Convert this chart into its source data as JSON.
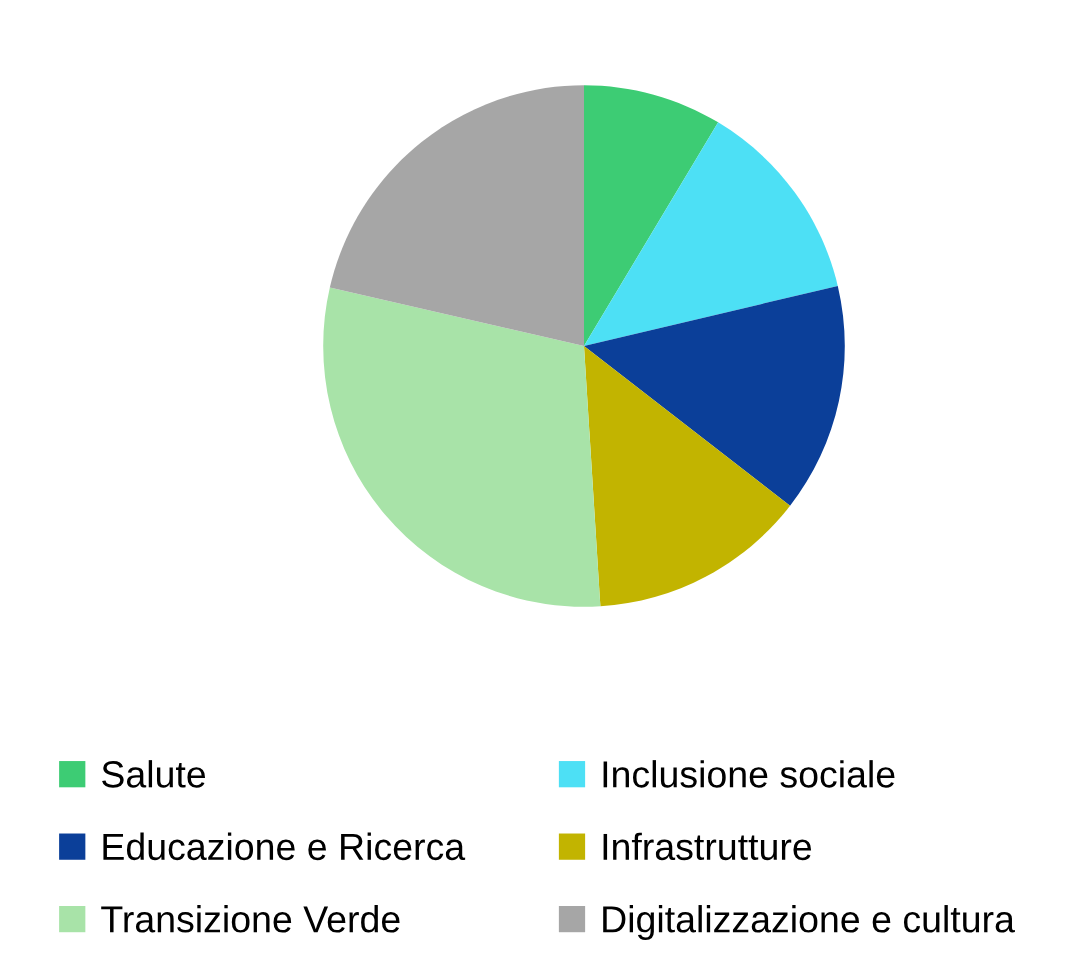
{
  "chart_data": {
    "type": "pie",
    "categories": [
      "Salute",
      "Inclusione sociale",
      "Educazione e Ricerca",
      "Infrastrutture",
      "Transizione Verde",
      "Digitalizzazione e cultura"
    ],
    "values": [
      8.6,
      12.7,
      14.2,
      13.5,
      29.6,
      21.4
    ],
    "colors": [
      "#3dcc74",
      "#4de0f5",
      "#0b3f99",
      "#c2b400",
      "#a8e3a8",
      "#a6a6a6"
    ],
    "legend": "bottom"
  }
}
